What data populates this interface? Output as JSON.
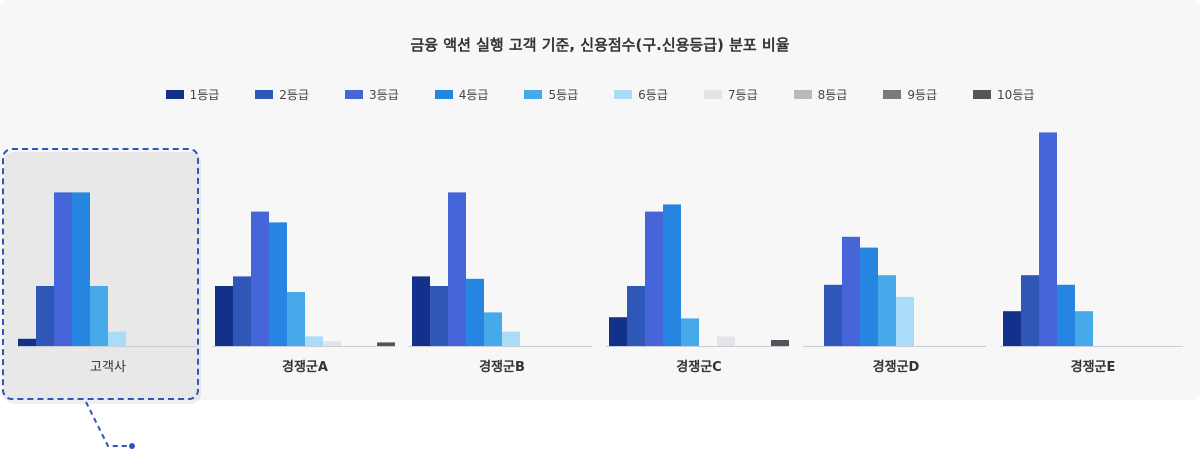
{
  "title": "금융 액션 실행 고객 기준, 신용점수(구.신용등급) 분포 비율",
  "legend": [
    {
      "label": "1등급",
      "color": "#13318a"
    },
    {
      "label": "2등급",
      "color": "#2f57b8"
    },
    {
      "label": "3등급",
      "color": "#4565d8"
    },
    {
      "label": "4등급",
      "color": "#2585e0"
    },
    {
      "label": "5등급",
      "color": "#45a9ea"
    },
    {
      "label": "6등급",
      "color": "#aadcf8"
    },
    {
      "label": "7등급",
      "color": "#e3e4e6"
    },
    {
      "label": "8등급",
      "color": "#bcb9bc"
    },
    {
      "label": "9등급",
      "color": "#7a797c"
    },
    {
      "label": "10등급",
      "color": "#555558"
    }
  ],
  "chart_data": {
    "type": "bar",
    "title": "금융 액션 실행 고객 기준, 신용점수(구.신용등급) 분포 비율",
    "categories": [
      "고객사",
      "경쟁군A",
      "경쟁군B",
      "경쟁군C",
      "경쟁군D",
      "경쟁군E"
    ],
    "highlighted_category": "고객사",
    "series": [
      {
        "name": "1등급",
        "values": [
          3,
          25,
          29,
          12,
          0,
          14.5
        ]
      },
      {
        "name": "2등급",
        "values": [
          25,
          29,
          25,
          25,
          25.5,
          29.5
        ]
      },
      {
        "name": "3등급",
        "values": [
          64,
          56,
          64,
          56,
          45.5,
          89
        ]
      },
      {
        "name": "4등급",
        "values": [
          64,
          51.5,
          28,
          59,
          41,
          25.5
        ]
      },
      {
        "name": "5등급",
        "values": [
          25,
          22.5,
          14,
          11.5,
          29.5,
          14.5
        ]
      },
      {
        "name": "6등급",
        "values": [
          6,
          4,
          6,
          0,
          20.5,
          0
        ]
      },
      {
        "name": "7등급",
        "values": [
          0,
          2,
          0,
          4,
          0,
          0
        ]
      },
      {
        "name": "8등급",
        "values": [
          0,
          0,
          0,
          0,
          0,
          0
        ]
      },
      {
        "name": "9등급",
        "values": [
          0,
          0,
          0,
          0,
          0,
          0
        ]
      },
      {
        "name": "10등급",
        "values": [
          0,
          1.5,
          0,
          2.5,
          0,
          0
        ]
      }
    ],
    "ylim": [
      0,
      100
    ],
    "grid": false,
    "legend_position": "top"
  }
}
